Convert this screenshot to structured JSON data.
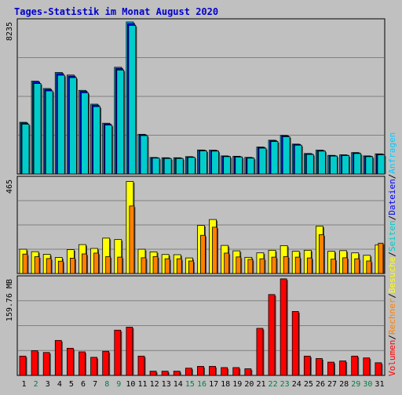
{
  "title": "Tages-Statistik im Monat August 2020",
  "colors": {
    "background": "#c0c0c0",
    "title": "#0000cc",
    "anfragen": "#00ccff",
    "dateien": "#0000ff",
    "seiten": "#00cccc",
    "besuche": "#ffff00",
    "rechner": "#ff8000",
    "volumen": "#ff0000",
    "weekday_label": "#000000",
    "weekend_label": "#008040"
  },
  "right_labels": {
    "anfragen": "Anfragen",
    "dateien": "Dateien",
    "seiten": "Seiten",
    "besuche": "Besuche",
    "rechner": "Rechner",
    "volumen": "Volumen",
    "sep": "/"
  },
  "chart_data": [
    {
      "type": "bar",
      "panel": "top",
      "ymax_label": "8235",
      "ylim": [
        0,
        8235
      ],
      "grid": true,
      "categories": [
        "1",
        "2",
        "3",
        "4",
        "5",
        "6",
        "7",
        "8",
        "9",
        "10",
        "11",
        "12",
        "13",
        "14",
        "15",
        "16",
        "17",
        "18",
        "19",
        "20",
        "21",
        "22",
        "23",
        "24",
        "25",
        "26",
        "27",
        "28",
        "29",
        "30",
        "31"
      ],
      "weekend": [
        false,
        true,
        false,
        false,
        false,
        false,
        false,
        true,
        true,
        false,
        false,
        false,
        false,
        false,
        true,
        true,
        false,
        false,
        false,
        false,
        false,
        true,
        true,
        false,
        false,
        false,
        false,
        false,
        true,
        true,
        false
      ],
      "series": [
        {
          "name": "Anfragen",
          "values": [
            2800,
            5030,
            4630,
            5500,
            5360,
            4530,
            3780,
            2750,
            5780,
            8235,
            2150,
            895,
            880,
            880,
            940,
            1300,
            1290,
            980,
            960,
            900,
            1460,
            1830,
            2090,
            1620,
            1110,
            1290,
            1010,
            1040,
            1160,
            980,
            1090
          ]
        },
        {
          "name": "Dateien",
          "values": [
            2760,
            4980,
            4580,
            5440,
            5300,
            4480,
            3730,
            2710,
            5720,
            8150,
            2120,
            880,
            860,
            860,
            920,
            1280,
            1270,
            960,
            940,
            880,
            1440,
            1800,
            2060,
            1600,
            1090,
            1270,
            990,
            1020,
            1140,
            960,
            1070
          ]
        },
        {
          "name": "Seiten",
          "values": [
            2700,
            4900,
            4500,
            5350,
            5220,
            4400,
            3650,
            2650,
            5630,
            8050,
            2080,
            860,
            840,
            840,
            900,
            1250,
            1240,
            940,
            920,
            860,
            1400,
            1760,
            2020,
            1560,
            1060,
            1240,
            970,
            1000,
            1110,
            940,
            1040
          ]
        }
      ]
    },
    {
      "type": "bar",
      "panel": "middle",
      "ymax_label": "465",
      "ylim": [
        0,
        465
      ],
      "grid": true,
      "categories": [
        "1",
        "2",
        "3",
        "4",
        "5",
        "6",
        "7",
        "8",
        "9",
        "10",
        "11",
        "12",
        "13",
        "14",
        "15",
        "16",
        "17",
        "18",
        "19",
        "20",
        "21",
        "22",
        "23",
        "24",
        "25",
        "26",
        "27",
        "28",
        "29",
        "30",
        "31"
      ],
      "series": [
        {
          "name": "Besuche",
          "values": [
            120,
            108,
            95,
            79,
            118,
            143,
            124,
            175,
            168,
            455,
            120,
            107,
            94,
            93,
            77,
            238,
            267,
            139,
            112,
            80,
            102,
            115,
            138,
            110,
            115,
            234,
            110,
            113,
            102,
            90,
            142
          ]
        },
        {
          "name": "Rechner",
          "values": [
            96,
            83,
            74,
            61,
            76,
            97,
            101,
            84,
            81,
            334,
            78,
            84,
            73,
            73,
            62,
            189,
            229,
            101,
            82,
            70,
            73,
            81,
            84,
            81,
            77,
            192,
            71,
            78,
            73,
            62,
            150
          ]
        }
      ]
    },
    {
      "type": "bar",
      "panel": "bottom",
      "ymax_label": "159.76 MB",
      "ylim": [
        0,
        159.76
      ],
      "grid": true,
      "categories": [
        "1",
        "2",
        "3",
        "4",
        "5",
        "6",
        "7",
        "8",
        "9",
        "10",
        "11",
        "12",
        "13",
        "14",
        "15",
        "16",
        "17",
        "18",
        "19",
        "20",
        "21",
        "22",
        "23",
        "24",
        "25",
        "26",
        "27",
        "28",
        "29",
        "30",
        "31"
      ],
      "series": [
        {
          "name": "Volumen",
          "values": [
            32,
            41,
            38,
            58,
            45,
            39,
            30,
            40,
            75,
            80,
            32,
            7,
            7,
            7,
            12,
            15,
            15,
            13,
            13,
            11,
            78,
            134,
            160,
            106,
            32,
            28,
            22,
            24,
            32,
            29,
            21
          ]
        }
      ]
    }
  ]
}
